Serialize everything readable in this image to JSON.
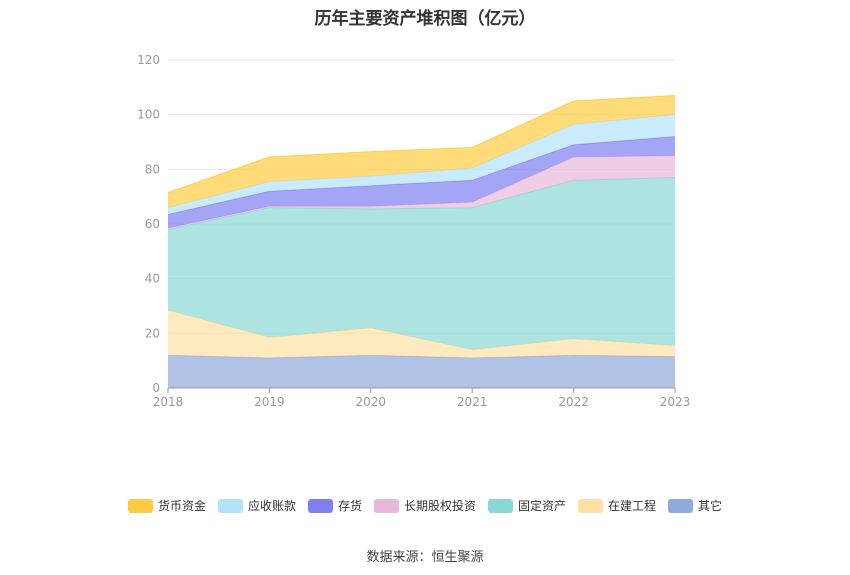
{
  "chart_data": {
    "type": "area",
    "stacked": true,
    "title": "历年主要资产堆积图（亿元）",
    "x": [
      "2018",
      "2019",
      "2020",
      "2021",
      "2022",
      "2023"
    ],
    "ylim": [
      0,
      120
    ],
    "yticks": [
      0,
      20,
      40,
      60,
      80,
      100,
      120
    ],
    "grid": true,
    "legend_position": "bottom",
    "series": [
      {
        "name": "其它",
        "color": "#8faadc",
        "values": [
          12,
          11,
          12,
          11,
          12,
          11.5
        ]
      },
      {
        "name": "在建工程",
        "color": "#ffdfa3",
        "values": [
          16.5,
          7.5,
          10,
          3,
          6,
          4
        ]
      },
      {
        "name": "固定资产",
        "color": "#8ad8d6",
        "values": [
          29.5,
          47.5,
          43.5,
          52,
          58,
          61.5
        ]
      },
      {
        "name": "长期股权投资",
        "color": "#e8b8d8",
        "values": [
          0.5,
          0.5,
          1,
          2,
          8.5,
          8
        ]
      },
      {
        "name": "存货",
        "color": "#7f7ff2",
        "values": [
          5,
          5.5,
          7.5,
          8,
          4.5,
          7
        ]
      },
      {
        "name": "应收账款",
        "color": "#b3e3f9",
        "values": [
          2.5,
          3.5,
          3.5,
          4.5,
          7.5,
          8
        ]
      },
      {
        "name": "货币资金",
        "color": "#ffcc40",
        "values": [
          5.5,
          9,
          9,
          7.5,
          8.5,
          7
        ]
      }
    ],
    "legend_order": [
      "货币资金",
      "应收账款",
      "存货",
      "长期股权投资",
      "固定资产",
      "在建工程",
      "其它"
    ],
    "source": "数据来源：恒生聚源"
  }
}
